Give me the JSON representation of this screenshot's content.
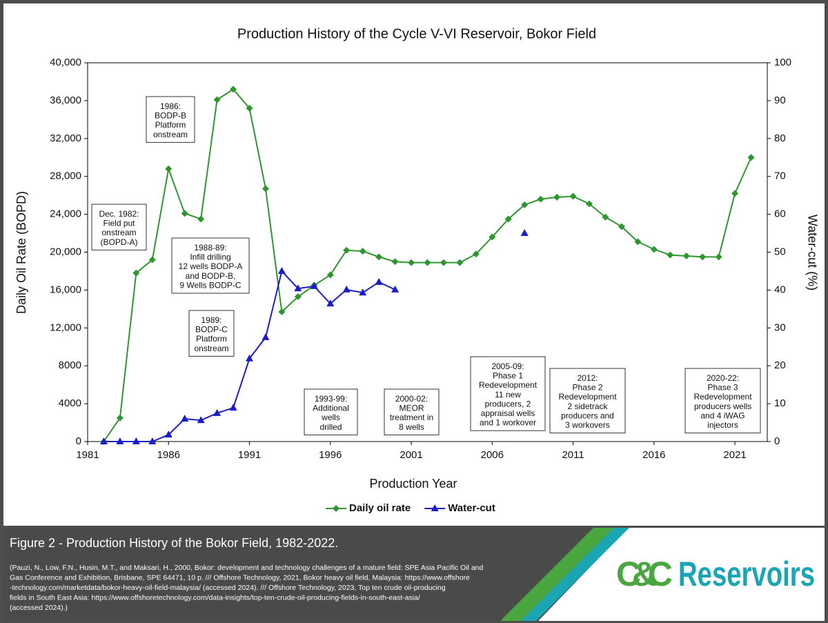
{
  "chart_data": {
    "type": "line",
    "title": "Production History of the Cycle V-VI Reservoir, Bokor Field",
    "x_label": "Production Year",
    "y_label": "Daily Oil Rate (BOPD)",
    "y2_label": "Water-cut (%)",
    "x": [
      1982,
      1983,
      1984,
      1985,
      1986,
      1987,
      1988,
      1989,
      1990,
      1991,
      1992,
      1993,
      1994,
      1995,
      1996,
      1997,
      1998,
      1999,
      2000,
      2001,
      2002,
      2003,
      2004,
      2005,
      2006,
      2007,
      2008,
      2009,
      2010,
      2011,
      2012,
      2013,
      2014,
      2015,
      2016,
      2017,
      2018,
      2019,
      2020,
      2021,
      2022
    ],
    "series": [
      {
        "name": "Daily oil rate",
        "color": "#2e962e",
        "marker": "diamond",
        "values": [
          0,
          2500,
          17800,
          19200,
          28800,
          24100,
          23500,
          36100,
          37200,
          35200,
          26700,
          13700,
          15300,
          16500,
          17600,
          20200,
          20100,
          19500,
          19000,
          18900,
          18900,
          18900,
          18900,
          19800,
          21600,
          23500,
          25000,
          25600,
          25800,
          25900,
          25100,
          23700,
          22700,
          21100,
          20300,
          19700,
          19600,
          19500,
          19500,
          26200,
          30000
        ]
      },
      {
        "name": "Water-cut",
        "color": "#1c1cc8",
        "marker": "triangle",
        "axis": "y2",
        "values": [
          0,
          0,
          0,
          0,
          1.8,
          6.0,
          5.6,
          7.5,
          8.9,
          21.9,
          27.5,
          45.0,
          40.4,
          41.0,
          36.4,
          40.1,
          39.3,
          42.1,
          40.1,
          null,
          null,
          null,
          null,
          null,
          null,
          null,
          55.0,
          null,
          null,
          null,
          null,
          null,
          null,
          null,
          null,
          null,
          null,
          null,
          null,
          null,
          null
        ]
      }
    ],
    "xlim": [
      1981,
      2023
    ],
    "xticks": [
      1981,
      1986,
      1991,
      1996,
      2001,
      2006,
      2011,
      2016,
      2021
    ],
    "ylim": [
      0,
      40000
    ],
    "yticks": [
      0,
      4000,
      8000,
      {
        "value": 12000,
        "label": "12,000"
      },
      {
        "value": 16000,
        "label": "16,000"
      },
      {
        "value": 20000,
        "label": "20,000"
      },
      {
        "value": 24000,
        "label": "24,000"
      },
      {
        "value": 28000,
        "label": "28,000"
      },
      {
        "value": 32000,
        "label": "32,000"
      },
      {
        "value": 36000,
        "label": "36,000"
      },
      {
        "value": 40000,
        "label": "40,000"
      }
    ],
    "y2lim": [
      0,
      100
    ],
    "y2ticks": [
      0,
      10,
      20,
      30,
      40,
      50,
      60,
      70,
      80,
      90,
      100
    ],
    "grid": false,
    "legend": "bottom",
    "annotations": [
      {
        "lines": [
          "1986:",
          "BODP-B",
          "Platform",
          "onstream"
        ]
      },
      {
        "lines": [
          "Dec. 1982:",
          "Field put",
          "onstream",
          "(BOPD-A)"
        ]
      },
      {
        "lines": [
          "1988-89:",
          "Infill drilling",
          "12 wells BODP-A",
          "and BODP-B,",
          "9 Wells BODP-C"
        ]
      },
      {
        "lines": [
          "1989:",
          "BODP-C",
          "Platform",
          "onstream"
        ]
      },
      {
        "lines": [
          "1993-99:",
          "Additional",
          "wells",
          "drilled"
        ]
      },
      {
        "lines": [
          "2000-02:",
          "MEOR",
          "treatment in",
          "8 wells"
        ]
      },
      {
        "lines": [
          "2005-09:",
          "Phase 1",
          "Redevelopment",
          "11 new",
          "producers,  2",
          "appraisal wells",
          "and 1 workover"
        ]
      },
      {
        "lines": [
          "2012:",
          "Phase 2",
          "Redevelopment",
          "2 sidetrack",
          "producers and",
          "3 workovers"
        ]
      },
      {
        "lines": [
          "2020-22:",
          "Phase 3",
          "Redevelopment",
          "producers wells",
          "and 4 iWAG",
          "injectors"
        ]
      }
    ]
  },
  "footer": {
    "caption": "Figure 2 - Production History of the Bokor Field, 1982-2022.",
    "citation_lines": [
      "(Pauzi, N., Low, F.N., Husin, M.T., and Maksari, H., 2000, Bokor: development and technology challenges of a mature field: SPE Asia Pacific Oil and",
      "Gas Conference and Exhibition, Brisbane, SPE 64471, 10 p. /// Offshore Technology, 2021, Bokor heavy oil field, Malaysia: https://www.offshore",
      "-technology.com/marketdata/bokor-heavy-oil-field-malaysia/ (accessed 2024). /// Offshore Technology, 2023, Top ten crude oil-producing",
      "fields in South East Asia: https://www.offshoretechnology.com/data-insights/top-ten-crude-oil-producing-fields-in-south-east-asia/",
      "(accessed 2024).)"
    ],
    "logo_parts": [
      "C&C",
      "Reservoirs"
    ]
  }
}
